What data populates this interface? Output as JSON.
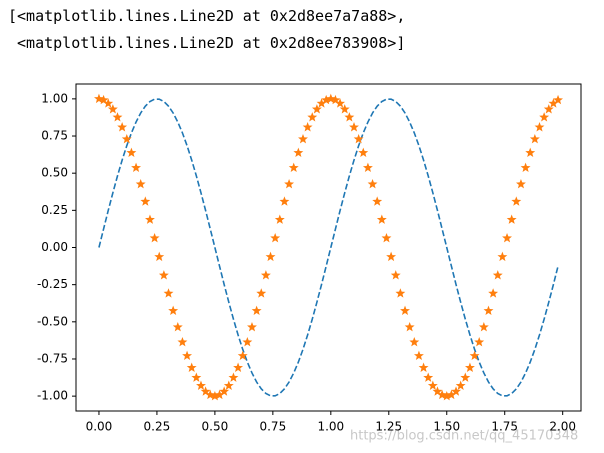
{
  "output_text": [
    "[<matplotlib.lines.Line2D at 0x2d8ee7a7a88>,",
    " <matplotlib.lines.Line2D at 0x2d8ee783908>]"
  ],
  "watermark": "https://blog.csdn.net/qq_45170348",
  "chart_data": {
    "type": "line",
    "x": [
      0,
      0.02,
      0.04,
      0.06,
      0.08,
      0.1,
      0.12,
      0.14,
      0.16,
      0.18,
      0.2,
      0.22,
      0.24,
      0.26,
      0.28,
      0.3,
      0.32,
      0.34,
      0.36,
      0.38,
      0.4,
      0.42,
      0.44,
      0.46,
      0.48,
      0.5,
      0.52,
      0.54,
      0.56,
      0.58,
      0.6,
      0.62,
      0.64,
      0.66,
      0.68,
      0.7,
      0.72,
      0.74,
      0.76,
      0.78,
      0.8,
      0.82,
      0.84,
      0.86,
      0.88,
      0.9,
      0.92,
      0.94,
      0.96,
      0.98,
      1,
      1.02,
      1.04,
      1.06,
      1.08,
      1.1,
      1.12,
      1.14,
      1.16,
      1.18,
      1.2,
      1.22,
      1.24,
      1.26,
      1.28,
      1.3,
      1.32,
      1.34,
      1.36,
      1.38,
      1.4,
      1.42,
      1.44,
      1.46,
      1.48,
      1.5,
      1.52,
      1.54,
      1.56,
      1.58,
      1.6,
      1.62,
      1.64,
      1.66,
      1.68,
      1.7,
      1.72,
      1.74,
      1.76,
      1.78,
      1.8,
      1.82,
      1.84,
      1.86,
      1.88,
      1.9,
      1.92,
      1.94,
      1.96,
      1.98
    ],
    "series": [
      {
        "color": "#1f77b4",
        "linestyle": "dashed",
        "values": [
          0,
          0.125,
          0.249,
          0.368,
          0.482,
          0.588,
          0.685,
          0.771,
          0.844,
          0.905,
          0.951,
          0.982,
          0.998,
          0.998,
          0.982,
          0.951,
          0.905,
          0.844,
          0.771,
          0.685,
          0.588,
          0.482,
          0.368,
          0.249,
          0.125,
          0,
          -0.125,
          -0.249,
          -0.368,
          -0.482,
          -0.588,
          -0.685,
          -0.771,
          -0.844,
          -0.905,
          -0.951,
          -0.982,
          -0.998,
          -0.998,
          -0.982,
          -0.951,
          -0.905,
          -0.844,
          -0.771,
          -0.685,
          -0.588,
          -0.482,
          -0.368,
          -0.249,
          -0.125,
          0,
          0.125,
          0.249,
          0.368,
          0.482,
          0.588,
          0.685,
          0.771,
          0.844,
          0.905,
          0.951,
          0.982,
          0.998,
          0.998,
          0.982,
          0.951,
          0.905,
          0.844,
          0.771,
          0.685,
          0.588,
          0.482,
          0.368,
          0.249,
          0.125,
          0,
          -0.125,
          -0.249,
          -0.368,
          -0.482,
          -0.588,
          -0.685,
          -0.771,
          -0.844,
          -0.905,
          -0.951,
          -0.982,
          -0.998,
          -0.998,
          -0.982,
          -0.951,
          -0.905,
          -0.844,
          -0.771,
          -0.685,
          -0.588,
          -0.482,
          -0.368,
          -0.249,
          -0.125
        ]
      },
      {
        "color": "#ff7f0e",
        "marker": "star",
        "values": [
          1,
          0.992,
          0.969,
          0.93,
          0.876,
          0.809,
          0.729,
          0.637,
          0.536,
          0.426,
          0.309,
          0.187,
          0.063,
          -0.063,
          -0.187,
          -0.309,
          -0.426,
          -0.536,
          -0.637,
          -0.729,
          -0.809,
          -0.876,
          -0.93,
          -0.969,
          -0.992,
          -1,
          -0.992,
          -0.969,
          -0.93,
          -0.876,
          -0.809,
          -0.729,
          -0.637,
          -0.536,
          -0.426,
          -0.309,
          -0.187,
          -0.063,
          0.063,
          0.187,
          0.309,
          0.426,
          0.536,
          0.637,
          0.729,
          0.809,
          0.876,
          0.93,
          0.969,
          0.992,
          1,
          0.992,
          0.969,
          0.93,
          0.876,
          0.809,
          0.729,
          0.637,
          0.536,
          0.426,
          0.309,
          0.187,
          0.063,
          -0.063,
          -0.187,
          -0.309,
          -0.426,
          -0.536,
          -0.637,
          -0.729,
          -0.809,
          -0.876,
          -0.93,
          -0.969,
          -0.992,
          -1,
          -0.992,
          -0.969,
          -0.93,
          -0.876,
          -0.809,
          -0.729,
          -0.637,
          -0.536,
          -0.426,
          -0.309,
          -0.187,
          -0.063,
          0.063,
          0.187,
          0.309,
          0.426,
          0.536,
          0.637,
          0.729,
          0.809,
          0.876,
          0.93,
          0.969,
          0.992
        ]
      }
    ],
    "xlim": [
      -0.099,
      2.079
    ],
    "ylim": [
      -1.1,
      1.1
    ],
    "xticks": [
      {
        "value": 0,
        "label": "0.00"
      },
      {
        "value": 0.25,
        "label": "0.25"
      },
      {
        "value": 0.5,
        "label": "0.50"
      },
      {
        "value": 0.75,
        "label": "0.75"
      },
      {
        "value": 1,
        "label": "1.00"
      },
      {
        "value": 1.25,
        "label": "1.25"
      },
      {
        "value": 1.5,
        "label": "1.50"
      },
      {
        "value": 1.75,
        "label": "1.75"
      },
      {
        "value": 2,
        "label": "2.00"
      }
    ],
    "yticks": [
      {
        "value": -1,
        "label": "-1.00"
      },
      {
        "value": -0.75,
        "label": "-0.75"
      },
      {
        "value": -0.5,
        "label": "-0.50"
      },
      {
        "value": -0.25,
        "label": "-0.25"
      },
      {
        "value": 0,
        "label": "0.00"
      },
      {
        "value": 0.25,
        "label": "0.25"
      },
      {
        "value": 0.5,
        "label": "0.50"
      },
      {
        "value": 0.75,
        "label": "0.75"
      },
      {
        "value": 1,
        "label": "1.00"
      }
    ],
    "grid": false
  }
}
